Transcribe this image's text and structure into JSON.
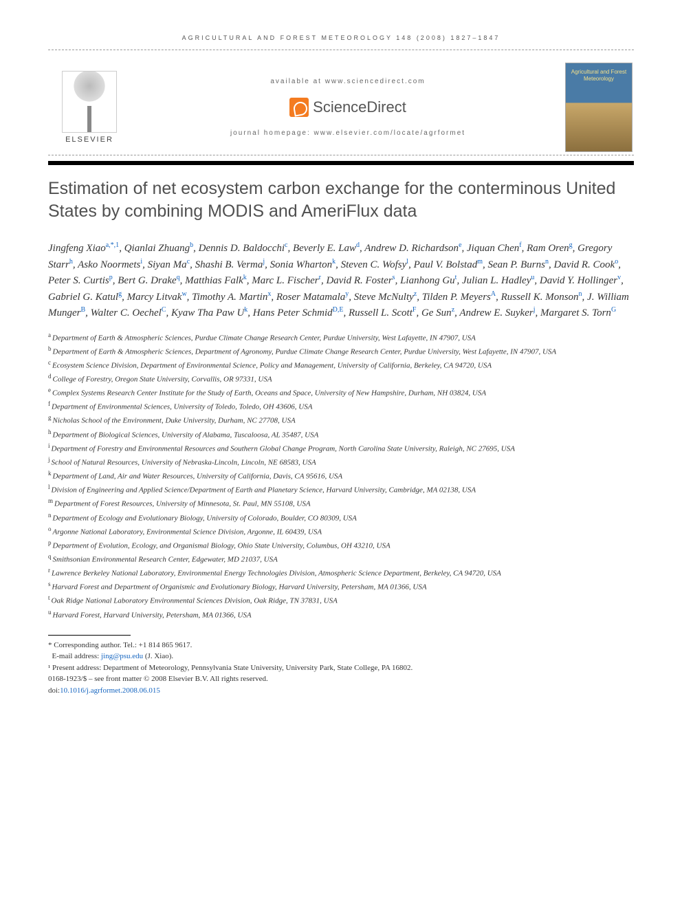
{
  "running_head": "AGRICULTURAL AND FOREST METEOROLOGY 148 (2008) 1827–1847",
  "header": {
    "available_at": "available at www.sciencedirect.com",
    "sd_label": "ScienceDirect",
    "homepage": "journal homepage: www.elsevier.com/locate/agrformet",
    "elsevier_label": "ELSEVIER",
    "cover_title": "Agricultural and Forest Meteorology"
  },
  "title": "Estimation of net ecosystem carbon exchange for the conterminous United States by combining MODIS and AmeriFlux data",
  "authors": [
    {
      "name": "Jingfeng Xiao",
      "aff": "a,*,1"
    },
    {
      "name": "Qianlai Zhuang",
      "aff": "b"
    },
    {
      "name": "Dennis D. Baldocchi",
      "aff": "c"
    },
    {
      "name": "Beverly E. Law",
      "aff": "d"
    },
    {
      "name": "Andrew D. Richardson",
      "aff": "e"
    },
    {
      "name": "Jiquan Chen",
      "aff": "f"
    },
    {
      "name": "Ram Oren",
      "aff": "g"
    },
    {
      "name": "Gregory Starr",
      "aff": "h"
    },
    {
      "name": "Asko Noormets",
      "aff": "i"
    },
    {
      "name": "Siyan Ma",
      "aff": "c"
    },
    {
      "name": "Shashi B. Verma",
      "aff": "j"
    },
    {
      "name": "Sonia Wharton",
      "aff": "k"
    },
    {
      "name": "Steven C. Wofsy",
      "aff": "l"
    },
    {
      "name": "Paul V. Bolstad",
      "aff": "m"
    },
    {
      "name": "Sean P. Burns",
      "aff": "n"
    },
    {
      "name": "David R. Cook",
      "aff": "o"
    },
    {
      "name": "Peter S. Curtis",
      "aff": "p"
    },
    {
      "name": "Bert G. Drake",
      "aff": "q"
    },
    {
      "name": "Matthias Falk",
      "aff": "k"
    },
    {
      "name": "Marc L. Fischer",
      "aff": "r"
    },
    {
      "name": "David R. Foster",
      "aff": "s"
    },
    {
      "name": "Lianhong Gu",
      "aff": "t"
    },
    {
      "name": "Julian L. Hadley",
      "aff": "u"
    },
    {
      "name": "David Y. Hollinger",
      "aff": "v"
    },
    {
      "name": "Gabriel G. Katul",
      "aff": "g"
    },
    {
      "name": "Marcy Litvak",
      "aff": "w"
    },
    {
      "name": "Timothy A. Martin",
      "aff": "x"
    },
    {
      "name": "Roser Matamala",
      "aff": "y"
    },
    {
      "name": "Steve McNulty",
      "aff": "z"
    },
    {
      "name": "Tilden P. Meyers",
      "aff": "A"
    },
    {
      "name": "Russell K. Monson",
      "aff": "n"
    },
    {
      "name": "J. William Munger",
      "aff": "B"
    },
    {
      "name": "Walter C. Oechel",
      "aff": "C"
    },
    {
      "name": "Kyaw Tha Paw U",
      "aff": "k"
    },
    {
      "name": "Hans Peter Schmid",
      "aff": "D,E"
    },
    {
      "name": "Russell L. Scott",
      "aff": "F"
    },
    {
      "name": "Ge Sun",
      "aff": "z"
    },
    {
      "name": "Andrew E. Suyker",
      "aff": "j"
    },
    {
      "name": "Margaret S. Torn",
      "aff": "G"
    }
  ],
  "affiliations": [
    {
      "key": "a",
      "text": "Department of Earth & Atmospheric Sciences, Purdue Climate Change Research Center, Purdue University, West Lafayette, IN 47907, USA"
    },
    {
      "key": "b",
      "text": "Department of Earth & Atmospheric Sciences, Department of Agronomy, Purdue Climate Change Research Center, Purdue University, West Lafayette, IN 47907, USA"
    },
    {
      "key": "c",
      "text": "Ecosystem Science Division, Department of Environmental Science, Policy and Management, University of California, Berkeley, CA 94720, USA"
    },
    {
      "key": "d",
      "text": "College of Forestry, Oregon State University, Corvallis, OR 97331, USA"
    },
    {
      "key": "e",
      "text": "Complex Systems Research Center Institute for the Study of Earth, Oceans and Space, University of New Hampshire, Durham, NH 03824, USA"
    },
    {
      "key": "f",
      "text": "Department of Environmental Sciences, University of Toledo, Toledo, OH 43606, USA"
    },
    {
      "key": "g",
      "text": "Nicholas School of the Environment, Duke University, Durham, NC 27708, USA"
    },
    {
      "key": "h",
      "text": "Department of Biological Sciences, University of Alabama, Tuscaloosa, AL 35487, USA"
    },
    {
      "key": "i",
      "text": "Department of Forestry and Environmental Resources and Southern Global Change Program, North Carolina State University, Raleigh, NC 27695, USA"
    },
    {
      "key": "j",
      "text": "School of Natural Resources, University of Nebraska-Lincoln, Lincoln, NE 68583, USA"
    },
    {
      "key": "k",
      "text": "Department of Land, Air and Water Resources, University of California, Davis, CA 95616, USA"
    },
    {
      "key": "l",
      "text": "Division of Engineering and Applied Science/Department of Earth and Planetary Science, Harvard University, Cambridge, MA 02138, USA"
    },
    {
      "key": "m",
      "text": "Department of Forest Resources, University of Minnesota, St. Paul, MN 55108, USA"
    },
    {
      "key": "n",
      "text": "Department of Ecology and Evolutionary Biology, University of Colorado, Boulder, CO 80309, USA"
    },
    {
      "key": "o",
      "text": "Argonne National Laboratory, Environmental Science Division, Argonne, IL 60439, USA"
    },
    {
      "key": "p",
      "text": "Department of Evolution, Ecology, and Organismal Biology, Ohio State University, Columbus, OH 43210, USA"
    },
    {
      "key": "q",
      "text": "Smithsonian Environmental Research Center, Edgewater, MD 21037, USA"
    },
    {
      "key": "r",
      "text": "Lawrence Berkeley National Laboratory, Environmental Energy Technologies Division, Atmospheric Science Department, Berkeley, CA 94720, USA"
    },
    {
      "key": "s",
      "text": "Harvard Forest and Department of Organismic and Evolutionary Biology, Harvard University, Petersham, MA 01366, USA"
    },
    {
      "key": "t",
      "text": "Oak Ridge National Laboratory Environmental Sciences Division, Oak Ridge, TN 37831, USA"
    },
    {
      "key": "u",
      "text": "Harvard Forest, Harvard University, Petersham, MA 01366, USA"
    }
  ],
  "footnotes": {
    "corr": "* Corresponding author. Tel.: +1 814 865 9617.",
    "email_label": "E-mail address: ",
    "email": "jing@psu.edu",
    "email_suffix": " (J. Xiao).",
    "present": "¹ Present address: Department of Meteorology, Pennsylvania State University, University Park, State College, PA 16802.",
    "copyright": "0168-1923/$ – see front matter © 2008 Elsevier B.V. All rights reserved.",
    "doi_label": "doi:",
    "doi": "10.1016/j.agrformet.2008.06.015"
  }
}
